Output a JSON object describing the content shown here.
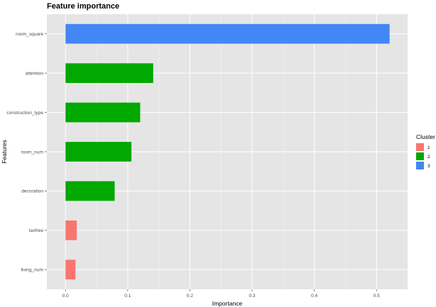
{
  "chart_data": {
    "type": "bar",
    "orientation": "horizontal",
    "title": "Feature importance",
    "xlabel": "Importance",
    "ylabel": "Features",
    "xlim": [
      -0.03,
      0.55
    ],
    "x_ticks": [
      0.0,
      0.1,
      0.2,
      0.3,
      0.4,
      0.5
    ],
    "x_tick_labels": [
      "0.0",
      "0.1",
      "0.2",
      "0.3",
      "0.4",
      "0.5"
    ],
    "grid": true,
    "background": "#e5e5e5",
    "categories": [
      "room_square",
      "attention",
      "construction_type",
      "room_num",
      "decoration",
      "taxfree",
      "living_num"
    ],
    "values": [
      0.521,
      0.141,
      0.12,
      0.106,
      0.079,
      0.018,
      0.016
    ],
    "clusters": [
      "3",
      "2",
      "2",
      "2",
      "2",
      "1",
      "1"
    ],
    "legend": {
      "title": "Cluster",
      "position": "right",
      "entries": [
        {
          "label": "1",
          "color": "#f8766d"
        },
        {
          "label": "2",
          "color": "#00ba38"
        },
        {
          "label": "3",
          "color": "#619cff"
        }
      ]
    }
  },
  "colors": {
    "cluster_1": "#f8766d",
    "cluster_2": "#00a800",
    "cluster_3": "#4287f5",
    "panel": "#e5e5e5",
    "grid_major": "#ffffff"
  }
}
